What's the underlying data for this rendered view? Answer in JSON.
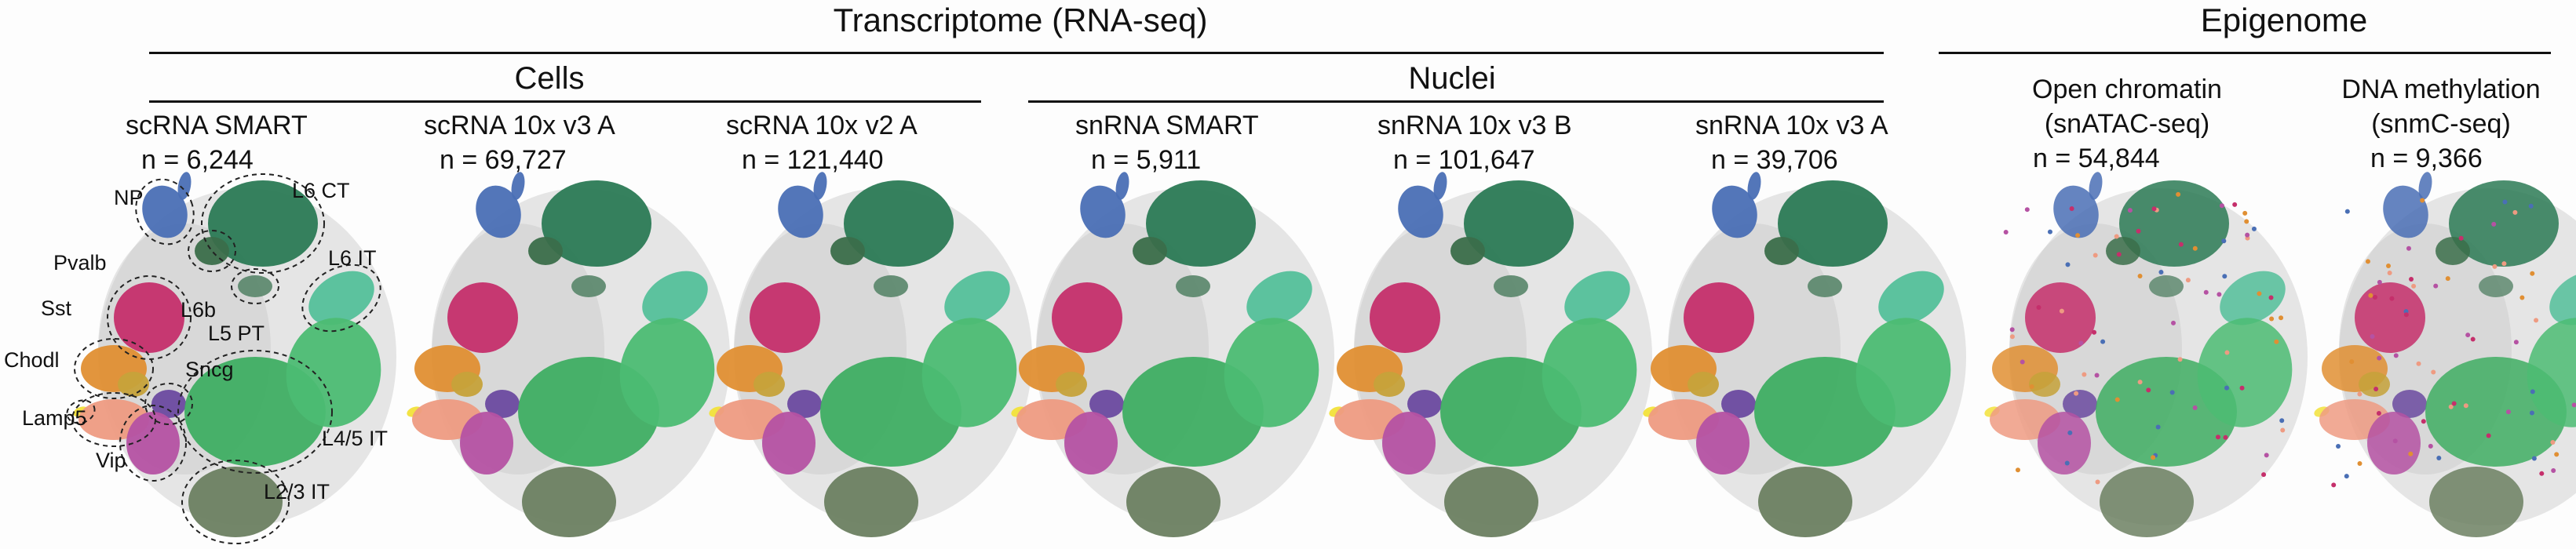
{
  "headers": {
    "transcriptome": "Transcriptome (RNA-seq)",
    "epigenome": "Epigenome",
    "cells": "Cells",
    "nuclei": "Nuclei"
  },
  "panels": [
    {
      "title": "scRNA SMART",
      "n": "n = 6,244"
    },
    {
      "title": "scRNA 10x v3 A",
      "n": "n = 69,727"
    },
    {
      "title": "scRNA 10x v2 A",
      "n": "n = 121,440"
    },
    {
      "title": "snRNA SMART",
      "n": "n = 5,911"
    },
    {
      "title": "snRNA 10x v3 B",
      "n": "n = 101,647"
    },
    {
      "title": "snRNA 10x v3 A",
      "n": "n = 39,706"
    },
    {
      "title": "Open chromatin",
      "subtitle": "(snATAC-seq)",
      "n": "n = 54,844"
    },
    {
      "title": "DNA methylation",
      "subtitle": "(snmC-seq)",
      "n": "n = 9,366"
    }
  ],
  "annotations": {
    "np": "NP",
    "l6ct": "L6 CT",
    "pvalb": "Pvalb",
    "l6it": "L6 IT",
    "sst": "Sst",
    "l6b": "L6b",
    "l5pt": "L5 PT",
    "chodl": "Chodl",
    "sncg": "Sncg",
    "lamp5": "Lamp5",
    "l45it": "L4/5 IT",
    "vip": "Vip",
    "l23it": "L2/3 IT"
  },
  "colors": {
    "L2/3 IT": "#6c8061",
    "L4/5 IT": "#3fae63",
    "L4/5 IT light": "#4cbc73",
    "L6 IT": "#54c09a",
    "L6 CT": "#2b7a55",
    "L6b": "#3b6e4a",
    "L5 PT": "#5f8a70",
    "NP": "#4a6fb5",
    "Pvalb": "#c52f6b",
    "Sst": "#e08f33",
    "Sst yellow": "#c6a23a",
    "Chodl": "#f2e23a",
    "Lamp5": "#ee9b82",
    "Sncg": "#6b4aa0",
    "Vip": "#b552a3",
    "background": "#c8c8c8"
  }
}
